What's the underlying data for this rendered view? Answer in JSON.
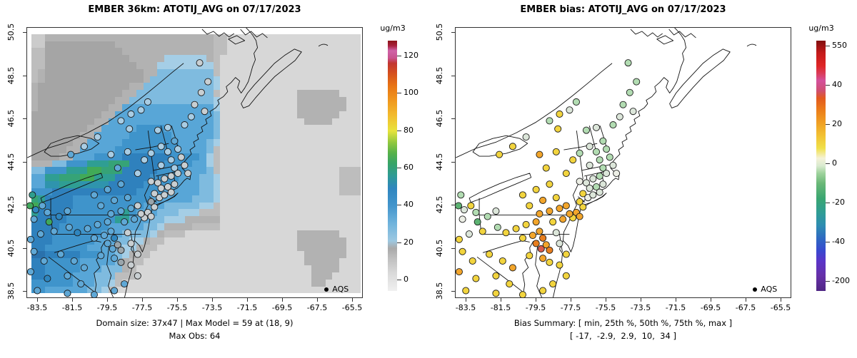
{
  "legend": {
    "label": "AQS"
  },
  "chart_data": {
    "type": [
      "heatmap",
      "scatter"
    ],
    "date": "07/17/2023",
    "variable": "ATOTIJ_AVG",
    "axes": {
      "x_ticks": [
        "-83.5",
        "-81.5",
        "-79.5",
        "-77.5",
        "-75.5",
        "-73.5",
        "-71.5",
        "-69.5",
        "-67.5",
        "-65.5"
      ],
      "y_ticks": [
        "38.5",
        "40.5",
        "42.5",
        "44.5",
        "46.5",
        "48.5",
        "50.5"
      ],
      "x_range": [
        -84.2,
        -64.9
      ],
      "y_range": [
        38.2,
        50.7
      ]
    },
    "panels": [
      {
        "id": "model",
        "type": "heatmap",
        "title": "EMBER 36km: ATOTIJ_AVG on 07/17/2023",
        "caption_line1": "Domain size: 37x47 | Max Model = 59 at (18, 9)",
        "caption_line2": "Max Obs: 64",
        "stations_palette": "obs",
        "has_raster": true,
        "colorbar": {
          "label": "ug/m3",
          "ticks": [
            {
              "label": "120",
              "pos": 94.0
            },
            {
              "label": "100",
              "pos": 79.2
            },
            {
              "label": "80",
              "pos": 64.2
            },
            {
              "label": "60",
              "pos": 49.3
            },
            {
              "label": "40",
              "pos": 34.4
            },
            {
              "label": "20",
              "pos": 19.4
            },
            {
              "label": "0",
              "pos": 4.5
            }
          ],
          "stops": [
            [
              0,
              "#f0f0f0"
            ],
            [
              7,
              "#dadada"
            ],
            [
              13,
              "#bfbfbf"
            ],
            [
              17,
              "#a9a9a9"
            ],
            [
              20,
              "#9dc8e1"
            ],
            [
              27,
              "#6fb3dc"
            ],
            [
              34,
              "#4395cc"
            ],
            [
              41,
              "#2f86bf"
            ],
            [
              46,
              "#2e9b95"
            ],
            [
              51,
              "#38a467"
            ],
            [
              55,
              "#55b14a"
            ],
            [
              59,
              "#8cc63f"
            ],
            [
              64,
              "#e8e33c"
            ],
            [
              70,
              "#f2bc2e"
            ],
            [
              76,
              "#f0981e"
            ],
            [
              82,
              "#e87414"
            ],
            [
              87,
              "#d44f1e"
            ],
            [
              91,
              "#c23530"
            ],
            [
              93,
              "#c9528d"
            ],
            [
              96,
              "#cf63a8"
            ],
            [
              98,
              "#a8203c"
            ],
            [
              100,
              "#8d1418"
            ]
          ]
        }
      },
      {
        "id": "bias",
        "type": "scatter",
        "title": "EMBER bias: ATOTIJ_AVG on 07/17/2023",
        "caption_line1": "Bias Summary: [ min, 25th %, 50th %, 75th %, max ]",
        "caption_line2": "[ -17,  -2.9,  2.9,  10,  34 ]",
        "stations_palette": "bias",
        "has_raster": false,
        "bias_summary": {
          "min": -17,
          "p25": -2.9,
          "p50": 2.9,
          "p75": 10,
          "max": 34
        },
        "colorbar": {
          "label": "ug/m3",
          "ticks": [
            {
              "label": "550",
              "pos": 98.0
            },
            {
              "label": "40",
              "pos": 82.3
            },
            {
              "label": "20",
              "pos": 66.6
            },
            {
              "label": "0",
              "pos": 51.0
            },
            {
              "label": "-20",
              "pos": 35.3
            },
            {
              "label": "-40",
              "pos": 19.6
            },
            {
              "label": "-200",
              "pos": 4.0
            }
          ],
          "stops": [
            [
              0,
              "#4f2683"
            ],
            [
              6,
              "#6630a8"
            ],
            [
              12,
              "#5a35c8"
            ],
            [
              16,
              "#3948cf"
            ],
            [
              20,
              "#2f62c4"
            ],
            [
              26,
              "#2e8cb2"
            ],
            [
              31,
              "#2f9c96"
            ],
            [
              37,
              "#3aa671"
            ],
            [
              43,
              "#6ab877"
            ],
            [
              47,
              "#9ed29c"
            ],
            [
              50,
              "#d9ead0"
            ],
            [
              53,
              "#f5f2d8"
            ],
            [
              57,
              "#f0e04a"
            ],
            [
              62,
              "#f2c233"
            ],
            [
              67,
              "#f0a124"
            ],
            [
              72,
              "#ec7f1a"
            ],
            [
              77,
              "#e25a1e"
            ],
            [
              80,
              "#cf4f71"
            ],
            [
              84,
              "#d4519c"
            ],
            [
              87,
              "#db3b57"
            ],
            [
              90,
              "#de2525"
            ],
            [
              95,
              "#c41a1a"
            ],
            [
              100,
              "#811010"
            ]
          ]
        }
      }
    ],
    "raster": {
      "ncols": 47,
      "nrows": 37,
      "palette": {
        ",": "#cbcbcb",
        "1": "#bdbdbd",
        "2": "#b2b2b2",
        "3": "#a5a5a5",
        ".": "#d7d7d7",
        "a": "#a5cee6",
        "b": "#7fbbdf",
        "c": "#58a6d7",
        "d": "#3f94cb",
        "e": "#2f81bd",
        "f": "#2a71ac",
        "g": "#2f94ad",
        "t": "#2f9e93",
        "u": "#36a377",
        "v": "#41aa57"
      },
      "rows": [
        ",,22222222222222222222222211...................",
        ",,33333333332222222222222211...................",
        "1133333333333222222222222211...................",
        "1133333333333322222aaaaaa21....................",
        "113333333333333222aaaaaaaa1....................",
        "123333333333333322bbbbbbbb1....................",
        "12333333333333332bbbbbbbbba....................",
        "2333333333333322bbbbbbbbbba....................",
        "233333333333322bbbbbbbbbbb1...........222222...",
        "23333333333322bbbbbbbbbbbba...........2222222..",
        "2333333333322ccccccccccccca...........2222222..",
        "333333333322ccccccccccccccb...........222222...",
        "33333333322cccccccccccccccb............2222....",
        "3333333322cccccddddcccccccb....................",
        "333333322cccccddddddccccccb....................",
        "33333322cccccddddddddccccba....................",
        "3333322cccccdddddddddccccb1....................",
        "333322cccddddeeeeeeeddddca1....................",
        "222bbdddtttuuueeeeeddddcca1....................",
        "bbdddtttvvuuueeeeeddddcccb1.................111",
        "ccttuuuvvttteeeeeddddcccbba.................111",
        "ccggtttggggeeeeeddddccccbba.................111",
        "dddeeeeeeeeeeeeddddcccccbba.................111",
        "uteeeedddddddddddccccccbbba....................",
        "vueeeeddddddddddcccbbbbbaa1....................",
        "teeeeddddddddtdcccbbbaaa111....................",
        "eeeeedddddddttcccbbaaa22222....................",
        "eeeedddddddcccccbba22221111....................",
        "eeedddddddcccbbbba2111................222222...",
        "eeeddddddcccbbaa211...................2222222..",
        "eeddddddcccbbaa211....................2222222..",
        "ffeeeeedddccba211......................222222..",
        "eedddddcccccb211.......................22222...",
        "eedddddcccbbb21.........................2222...",
        "eeddddcccbbb111.........................222....",
        "ddddddcccbba1...........................22.....",
        "ddccccccbba1..................................."
      ]
    },
    "obs_palette": {
      "A": "#a9cde4",
      "B": "#5fa8d6",
      "C": "#2f86bf",
      "G": "#c9cfd2",
      "D": "#9aa5ab",
      "T": "#2f9e8f",
      "E": "#3fa85c"
    },
    "bias_palette": {
      "w": "#edefe6",
      "p": "#dce6da",
      "n": "#b2dcb2",
      "g": "#5cb272",
      "y": "#f2d43e",
      "o": "#f2a52b",
      "d": "#e87e1e",
      "r": "#d9594a"
    },
    "stations": [
      [
        1.5,
        62,
        "T",
        "n"
      ],
      [
        0.8,
        66,
        "E",
        "g"
      ],
      [
        2.5,
        67.5,
        "C",
        "p"
      ],
      [
        4.5,
        66,
        "B",
        "y"
      ],
      [
        6,
        68.5,
        "B",
        "n"
      ],
      [
        2,
        71,
        "B",
        "w"
      ],
      [
        6.5,
        72,
        "E",
        "g"
      ],
      [
        9.5,
        70,
        "C",
        "n"
      ],
      [
        12,
        68,
        "B",
        "p"
      ],
      [
        8,
        75.5,
        "B",
        "y"
      ],
      [
        12.5,
        74,
        "B",
        "n"
      ],
      [
        15,
        76,
        "C",
        "y"
      ],
      [
        4,
        76.5,
        "B",
        "p"
      ],
      [
        1,
        78.5,
        "B",
        "y"
      ],
      [
        2,
        83,
        "B",
        "y"
      ],
      [
        5,
        86.5,
        "B",
        "y"
      ],
      [
        1,
        90.5,
        "B",
        "o"
      ],
      [
        6,
        93,
        "C",
        "y"
      ],
      [
        3,
        97.5,
        "B",
        "y"
      ],
      [
        12,
        98.5,
        "B",
        "y"
      ],
      [
        13,
        47,
        "B",
        "y"
      ],
      [
        17,
        44,
        "A",
        "y"
      ],
      [
        21,
        40.5,
        "A",
        "p"
      ],
      [
        28,
        34.5,
        "A",
        "n"
      ],
      [
        31,
        32,
        "A",
        "y"
      ],
      [
        34,
        30.5,
        "A",
        "p"
      ],
      [
        36,
        27.5,
        "A",
        "n"
      ],
      [
        30.5,
        37.5,
        "A",
        "y"
      ],
      [
        25,
        47,
        "A",
        "o"
      ],
      [
        30,
        46,
        "A",
        "y"
      ],
      [
        35,
        49,
        "A",
        "y"
      ],
      [
        27,
        52,
        "B",
        "y"
      ],
      [
        33,
        54,
        "A",
        "y"
      ],
      [
        39,
        38,
        "A",
        "n"
      ],
      [
        42,
        37,
        "A",
        "p"
      ],
      [
        44,
        42,
        "B",
        "n"
      ],
      [
        40,
        44,
        "A",
        "p"
      ],
      [
        37,
        46.5,
        "A",
        "n"
      ],
      [
        42,
        46,
        "A",
        "n"
      ],
      [
        45,
        45,
        "A",
        "n"
      ],
      [
        43,
        49,
        "A",
        "n"
      ],
      [
        46,
        48,
        "G",
        "n"
      ],
      [
        40,
        51,
        "A",
        "p"
      ],
      [
        44,
        52,
        "A",
        "n"
      ],
      [
        47,
        51,
        "G",
        "p"
      ],
      [
        47,
        36,
        "A",
        "n"
      ],
      [
        49,
        33,
        "A",
        "p"
      ],
      [
        50,
        28.5,
        "G",
        "n"
      ],
      [
        52,
        24,
        "G",
        "n"
      ],
      [
        51.5,
        13,
        "G",
        "n"
      ],
      [
        54,
        20,
        "G",
        "n"
      ],
      [
        53,
        31,
        "G",
        "p"
      ],
      [
        37,
        57,
        "G",
        "w"
      ],
      [
        39,
        57.5,
        "G",
        "p"
      ],
      [
        41,
        56,
        "G",
        "p"
      ],
      [
        43,
        55,
        "G",
        "n"
      ],
      [
        45,
        54,
        "G",
        "p"
      ],
      [
        48,
        54,
        "G",
        "w"
      ],
      [
        40,
        59.5,
        "G",
        "p"
      ],
      [
        42,
        59,
        "G",
        "n"
      ],
      [
        44,
        58,
        "G",
        "p"
      ],
      [
        38,
        61.5,
        "G",
        "y"
      ],
      [
        39.5,
        63,
        "G",
        "w"
      ],
      [
        41,
        62,
        "G",
        "p"
      ],
      [
        43,
        61,
        "G",
        "p"
      ],
      [
        37,
        64.5,
        "D",
        "y"
      ],
      [
        38,
        66.5,
        "G",
        "y"
      ],
      [
        36,
        68.5,
        "G",
        "o"
      ],
      [
        35,
        70.5,
        "G",
        "y"
      ],
      [
        37,
        70,
        "G",
        "o"
      ],
      [
        20,
        62,
        "B",
        "y"
      ],
      [
        24,
        60,
        "B",
        "y"
      ],
      [
        28,
        58,
        "B",
        "y"
      ],
      [
        22,
        66,
        "B",
        "y"
      ],
      [
        26,
        64,
        "B",
        "o"
      ],
      [
        30,
        63,
        "B",
        "y"
      ],
      [
        25,
        69,
        "B",
        "o"
      ],
      [
        28,
        68,
        "B",
        "o"
      ],
      [
        31,
        67,
        "B",
        "o"
      ],
      [
        33,
        66,
        "G",
        "o"
      ],
      [
        29,
        72,
        "B",
        "y"
      ],
      [
        32,
        71,
        "B",
        "o"
      ],
      [
        34,
        69,
        "G",
        "o"
      ],
      [
        18,
        74.5,
        "B",
        "y"
      ],
      [
        21,
        73,
        "B",
        "y"
      ],
      [
        24,
        72,
        "B",
        "o"
      ],
      [
        20,
        78,
        "B",
        "y"
      ],
      [
        23,
        77,
        "B",
        "o"
      ],
      [
        25,
        75.5,
        "B",
        "o"
      ],
      [
        26,
        78,
        "C",
        "d"
      ],
      [
        24,
        80,
        "B",
        "d"
      ],
      [
        25.5,
        82,
        "B",
        "r"
      ],
      [
        27,
        80.5,
        "D",
        "o"
      ],
      [
        28,
        82.5,
        "D",
        "d"
      ],
      [
        22,
        84.5,
        "B",
        "y"
      ],
      [
        26,
        85.5,
        "B",
        "o"
      ],
      [
        28,
        87,
        "D",
        "y"
      ],
      [
        30,
        76,
        "G",
        "p"
      ],
      [
        31,
        80,
        "G",
        "p"
      ],
      [
        33,
        84,
        "G",
        "y"
      ],
      [
        31,
        88,
        "G",
        "y"
      ],
      [
        33,
        92,
        "G",
        "y"
      ],
      [
        29,
        95,
        "B",
        "y"
      ],
      [
        26,
        97.5,
        "B",
        "y"
      ],
      [
        20,
        99,
        "B",
        "y"
      ],
      [
        10,
        84,
        "B",
        "y"
      ],
      [
        14,
        86.5,
        "B",
        "y"
      ],
      [
        17,
        89,
        "B",
        "o"
      ],
      [
        12,
        92,
        "B",
        "y"
      ],
      [
        16,
        95,
        "B",
        "y"
      ]
    ]
  }
}
